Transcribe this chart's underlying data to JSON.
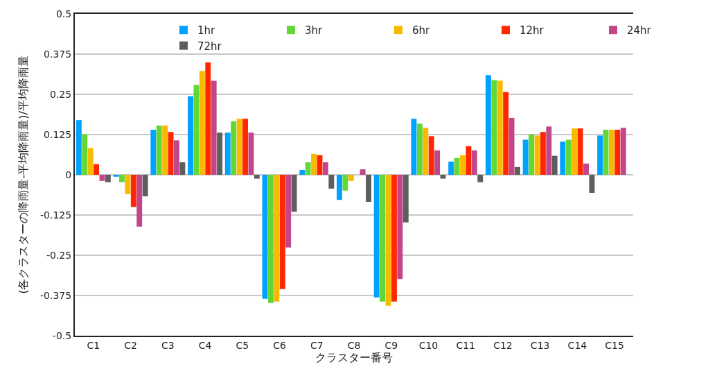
{
  "chart_data": {
    "type": "bar",
    "xlabel": "クラスター番号",
    "ylabel": "(各クラスターの降雨量-平均降雨量)/平均降雨量",
    "categories": [
      "C1",
      "C2",
      "C3",
      "C4",
      "C5",
      "C6",
      "C7",
      "C8",
      "C9",
      "C10",
      "C11",
      "C12",
      "C13",
      "C14",
      "C15"
    ],
    "series": [
      {
        "name": "1hr",
        "color": "#00a2ff",
        "values": [
          0.17,
          -0.006,
          0.14,
          0.244,
          0.131,
          -0.385,
          0.015,
          -0.078,
          -0.381,
          0.174,
          0.041,
          0.31,
          0.109,
          0.103,
          0.122
        ]
      },
      {
        "name": "3hr",
        "color": "#61d836",
        "values": [
          0.126,
          -0.023,
          0.153,
          0.279,
          0.166,
          -0.398,
          0.039,
          -0.049,
          -0.394,
          0.159,
          0.052,
          0.294,
          0.126,
          0.109,
          0.14
        ]
      },
      {
        "name": "6hr",
        "color": "#f8ba00",
        "values": [
          0.083,
          -0.06,
          0.153,
          0.323,
          0.174,
          -0.394,
          0.065,
          -0.019,
          -0.407,
          0.146,
          0.061,
          0.292,
          0.122,
          0.144,
          0.14
        ]
      },
      {
        "name": "12hr",
        "color": "#ff2600",
        "values": [
          0.033,
          -0.1,
          0.133,
          0.349,
          0.174,
          -0.355,
          0.061,
          0,
          -0.394,
          0.12,
          0.089,
          0.257,
          0.133,
          0.144,
          0.14
        ]
      },
      {
        "name": "24hr",
        "color": "#c1478a",
        "values": [
          -0.019,
          -0.161,
          0.107,
          0.292,
          0.131,
          -0.226,
          0.039,
          0.017,
          -0.324,
          0.076,
          0.076,
          0.177,
          0.15,
          0.035,
          0.146
        ]
      },
      {
        "name": "72hr",
        "color": "#5e5e5e",
        "values": [
          -0.023,
          -0.067,
          0.039,
          0.131,
          -0.012,
          -0.115,
          -0.043,
          -0.084,
          -0.148,
          -0.012,
          -0.023,
          0.024,
          0.059,
          -0.056,
          null
        ]
      }
    ],
    "ylim": [
      -0.5,
      0.5
    ],
    "yticks": [
      -0.5,
      -0.375,
      -0.25,
      -0.125,
      0,
      0.125,
      0.25,
      0.375,
      0.5
    ],
    "grid": "y",
    "legend": "top"
  }
}
